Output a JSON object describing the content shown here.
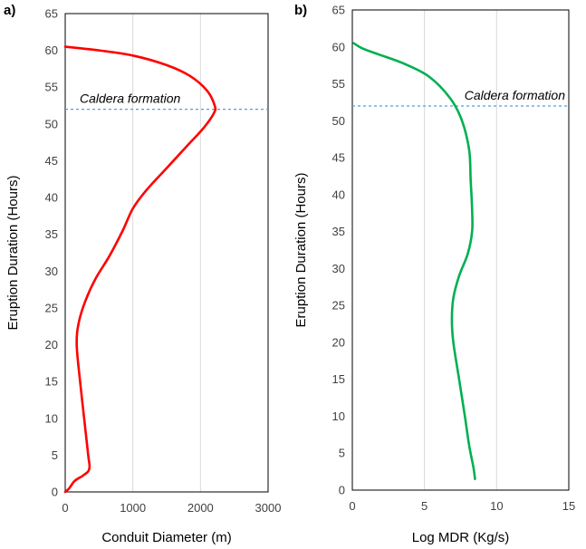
{
  "chart_data": [
    {
      "type": "line",
      "panel_label": "a)",
      "xlabel": "Conduit Diameter (m)",
      "ylabel": "Eruption Duration (Hours)",
      "xlim": [
        0,
        3000
      ],
      "ylim": [
        0,
        65
      ],
      "x_ticks": [
        0,
        1000,
        2000,
        3000
      ],
      "y_ticks": [
        0,
        5,
        10,
        15,
        20,
        25,
        30,
        35,
        40,
        45,
        50,
        55,
        60,
        65
      ],
      "grid": "vertical",
      "reference_line": {
        "y": 52,
        "label": "Caldera formation",
        "color": "#5b9bd5",
        "style": "dashed"
      },
      "series": [
        {
          "color": "#ff0000",
          "points": [
            [
              0,
              0
            ],
            [
              60,
              0.5
            ],
            [
              140,
              1.5
            ],
            [
              260,
              2.2
            ],
            [
              340,
              2.8
            ],
            [
              360,
              3.5
            ],
            [
              340,
              5
            ],
            [
              280,
              10
            ],
            [
              220,
              15
            ],
            [
              170,
              20
            ],
            [
              200,
              23
            ],
            [
              300,
              26
            ],
            [
              450,
              29
            ],
            [
              650,
              32
            ],
            [
              850,
              35.5
            ],
            [
              1000,
              38.5
            ],
            [
              1200,
              41
            ],
            [
              1500,
              44
            ],
            [
              1800,
              47
            ],
            [
              2050,
              49.5
            ],
            [
              2200,
              51.5
            ],
            [
              2210,
              52.5
            ],
            [
              2100,
              54.5
            ],
            [
              1850,
              56.5
            ],
            [
              1500,
              58
            ],
            [
              1000,
              59.3
            ],
            [
              500,
              60
            ],
            [
              0,
              60.5
            ]
          ]
        }
      ]
    },
    {
      "type": "line",
      "panel_label": "b)",
      "xlabel": "Log MDR (Kg/s)",
      "ylabel": "Eruption Duration (Hours)",
      "xlim": [
        0,
        15
      ],
      "ylim": [
        0,
        65
      ],
      "x_ticks": [
        0,
        5,
        10,
        15
      ],
      "y_ticks": [
        0,
        5,
        10,
        15,
        20,
        25,
        30,
        35,
        40,
        45,
        50,
        55,
        60,
        65
      ],
      "grid": "vertical",
      "reference_line": {
        "y": 52,
        "label": "Caldera formation",
        "color": "#5b9bd5",
        "style": "dashed"
      },
      "series": [
        {
          "color": "#00b050",
          "points": [
            [
              8.5,
              1.5
            ],
            [
              8.4,
              3
            ],
            [
              8.1,
              6
            ],
            [
              7.8,
              10
            ],
            [
              7.4,
              15
            ],
            [
              7.0,
              20
            ],
            [
              6.9,
              23
            ],
            [
              7.0,
              26
            ],
            [
              7.4,
              29
            ],
            [
              8.0,
              32
            ],
            [
              8.3,
              35
            ],
            [
              8.3,
              38
            ],
            [
              8.2,
              42
            ],
            [
              8.1,
              46
            ],
            [
              7.6,
              50
            ],
            [
              6.8,
              53
            ],
            [
              5.3,
              56
            ],
            [
              3.5,
              57.8
            ],
            [
              1.8,
              59
            ],
            [
              0.7,
              59.8
            ],
            [
              0.1,
              60.5
            ]
          ]
        }
      ]
    }
  ]
}
